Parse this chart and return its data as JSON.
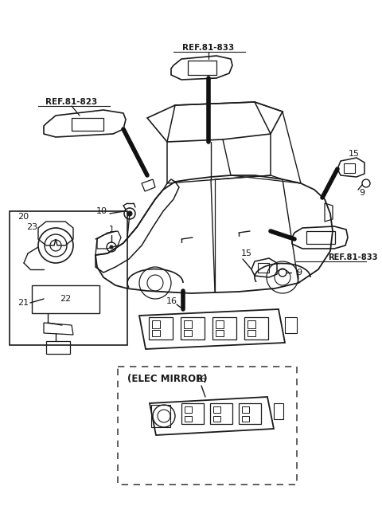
{
  "bg_color": "#ffffff",
  "line_color": "#1a1a1a",
  "text_color": "#1a1a1a",
  "fig_width": 4.8,
  "fig_height": 6.55,
  "dpi": 100,
  "labels": {
    "ref_81_833_top": "REF.81-833",
    "ref_81_823": "REF.81-823",
    "ref_81_833_right": "REF.81-833",
    "elec_mirror": "(ELEC MIRROR)",
    "num_10": "10",
    "num_15_right": "15",
    "num_9_right": "9",
    "num_15_mid": "15",
    "num_9_mid": "9",
    "num_16_main": "16",
    "num_16_elec": "16",
    "num_20": "20",
    "num_23": "23",
    "num_1": "1",
    "num_21": "21",
    "num_22": "22"
  }
}
